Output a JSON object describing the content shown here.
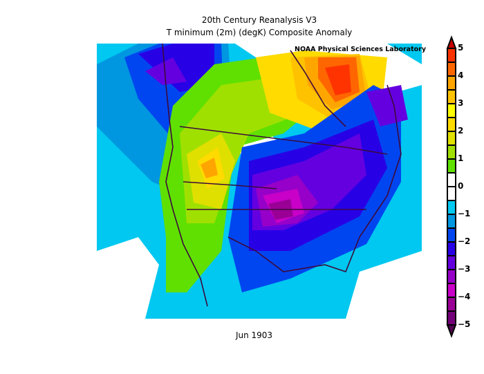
{
  "header": {
    "title_line1": "20th Century Reanalysis V3",
    "title_line2": "T minimum (2m) (degK) Composite Anomaly",
    "credit": "NOAA Physical Sciences Laboratory"
  },
  "footer": {
    "date_label": "Jun 1903"
  },
  "colorbar": {
    "labels": [
      "5",
      "4",
      "3",
      "2",
      "1",
      "0",
      "−1",
      "−2",
      "−3",
      "−4",
      "−5"
    ],
    "min": -5,
    "max": 5,
    "bins_top_to_bottom": [
      {
        "range": "4.5 to 5",
        "color": "#ff3300"
      },
      {
        "range": "4 to 4.5",
        "color": "#ff6600"
      },
      {
        "range": "3.5 to 4",
        "color": "#ffa500"
      },
      {
        "range": "3 to 3.5",
        "color": "#ffc200"
      },
      {
        "range": "2.5 to 3",
        "color": "#ffff00"
      },
      {
        "range": "2 to 2.5",
        "color": "#ffdb00"
      },
      {
        "range": "1.5 to 2",
        "color": "#dfdf00"
      },
      {
        "range": "1 to 1.5",
        "color": "#a0e000"
      },
      {
        "range": "0.5 to 1",
        "color": "#60e000"
      },
      {
        "range": "0 to 0.5",
        "color": "#ffffff"
      },
      {
        "range": "-0.5 to 0",
        "color": "#ffffff"
      },
      {
        "range": "-1 to -0.5",
        "color": "#00c8f0"
      },
      {
        "range": "-1.5 to -1",
        "color": "#0096e0"
      },
      {
        "range": "-2 to -1.5",
        "color": "#0046f0"
      },
      {
        "range": "-2.5 to -2",
        "color": "#2800e6"
      },
      {
        "range": "-3 to -2.5",
        "color": "#6400e0"
      },
      {
        "range": "-3.5 to -3",
        "color": "#9600c8"
      },
      {
        "range": "-4 to -3.5",
        "color": "#c800c8"
      },
      {
        "range": "-4.5 to -4",
        "color": "#9a0096"
      },
      {
        "range": "-5 to -4.5",
        "color": "#730078"
      }
    ],
    "over_color": "#c80000",
    "under_color": "#500050"
  },
  "map": {
    "region": "North America (USA, southern Canada, northern Mexico)",
    "notable_features": [
      "Warm anomaly (+4 to +5) over Hudson Bay / northern Quebec",
      "Warm anomaly (+1 to +3) over western US and western Canada",
      "Cold anomaly (-3 to -5) centered over Oklahoma / central Plains",
      "Cold anomaly (-2 to -4) over eastern US and Nova Scotia",
      "Cold anomaly (-1 to -3) over northeast Pacific"
    ]
  }
}
